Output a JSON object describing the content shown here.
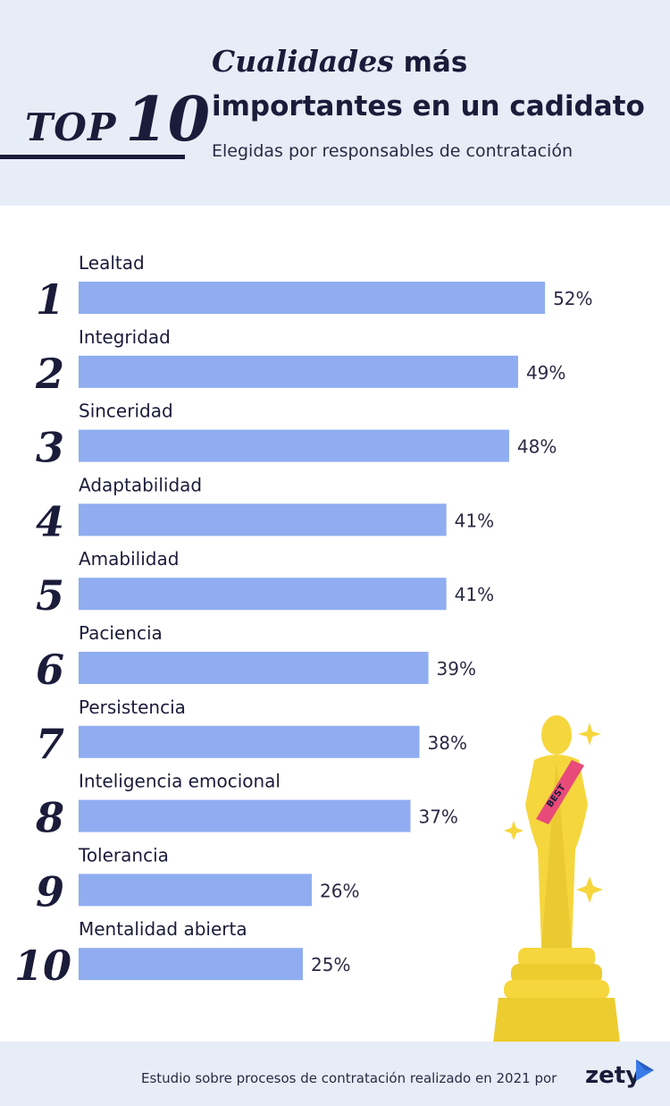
{
  "header": {
    "top_word": "TOP",
    "top_number": "10",
    "title_emphasis": "Cualidades",
    "title_rest_line1": " más",
    "title_line2": "importantes en un cadidato",
    "subtitle": "Elegidas por responsables de contratación"
  },
  "chart_data": {
    "type": "bar",
    "orientation": "horizontal",
    "categories": [
      "Lealtad",
      "Integridad",
      "Sinceridad",
      "Adaptabilidad",
      "Amabilidad",
      "Paciencia",
      "Persistencia",
      "Inteligencia emocional",
      "Tolerancia",
      "Mentalidad abierta"
    ],
    "ranks": [
      "1",
      "2",
      "3",
      "4",
      "5",
      "6",
      "7",
      "8",
      "9",
      "10"
    ],
    "values": [
      52,
      49,
      48,
      41,
      41,
      39,
      38,
      37,
      26,
      25
    ],
    "value_labels": [
      "52%",
      "49%",
      "48%",
      "41%",
      "41%",
      "39%",
      "38%",
      "37%",
      "26%",
      "25%"
    ],
    "xlim": [
      0,
      100
    ],
    "bar_color": "#8fadf0",
    "grid": false,
    "legend": "none"
  },
  "decoration": {
    "trophy_sash_text": "BEST",
    "trophy_color": "#f5d63d",
    "sash_color": "#e84a7a"
  },
  "footer": {
    "text": "Estudio sobre procesos de contratación realizado en 2021 por",
    "brand": "zety",
    "brand_color": "#3b7be8"
  }
}
